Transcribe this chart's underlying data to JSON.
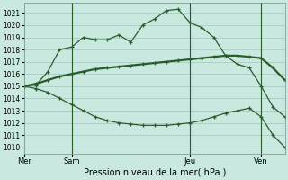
{
  "background_color": "#c8e8e0",
  "grid_color": "#a0c8c0",
  "line_color": "#2a5c2a",
  "xlabel": "Pression niveau de la mer( hPa )",
  "ylim": [
    1009.5,
    1021.8
  ],
  "yticks": [
    1010,
    1011,
    1012,
    1013,
    1014,
    1015,
    1016,
    1017,
    1018,
    1019,
    1020,
    1021
  ],
  "day_labels": [
    "Mer",
    "Sam",
    "Jeu",
    "Ven"
  ],
  "day_positions": [
    0,
    4,
    14,
    20
  ],
  "series1_x": [
    0,
    1,
    2,
    3,
    4,
    5,
    6,
    7,
    8,
    9,
    10,
    11,
    12,
    13,
    14,
    15,
    16,
    17,
    18,
    19,
    20,
    21,
    22
  ],
  "series1_y": [
    1015.0,
    1015.1,
    1016.2,
    1018.0,
    1018.2,
    1019.0,
    1018.8,
    1018.8,
    1019.2,
    1018.6,
    1020.0,
    1020.5,
    1021.2,
    1021.3,
    1020.2,
    1019.8,
    1019.0,
    1017.5,
    1016.8,
    1016.5,
    1015.0,
    1013.3,
    1012.5
  ],
  "series2_x": [
    0,
    1,
    2,
    3,
    4,
    5,
    6,
    7,
    8,
    9,
    10,
    11,
    12,
    13,
    14,
    15,
    16,
    17,
    18,
    19,
    20,
    21,
    22
  ],
  "series2_y": [
    1015.0,
    1015.2,
    1015.5,
    1015.8,
    1016.0,
    1016.2,
    1016.4,
    1016.5,
    1016.6,
    1016.7,
    1016.8,
    1016.9,
    1017.0,
    1017.1,
    1017.2,
    1017.3,
    1017.4,
    1017.5,
    1017.5,
    1017.4,
    1017.3,
    1016.5,
    1015.5
  ],
  "series3_x": [
    0,
    1,
    2,
    3,
    4,
    5,
    6,
    7,
    8,
    9,
    10,
    11,
    12,
    13,
    14,
    15,
    16,
    17,
    18,
    19,
    20,
    21,
    22
  ],
  "series3_y": [
    1015.0,
    1014.8,
    1014.5,
    1014.0,
    1013.5,
    1013.0,
    1012.5,
    1012.2,
    1012.0,
    1011.9,
    1011.8,
    1011.8,
    1011.8,
    1011.9,
    1012.0,
    1012.2,
    1012.5,
    1012.8,
    1013.0,
    1013.2,
    1012.5,
    1011.0,
    1010.0
  ],
  "xlim": [
    0,
    22
  ]
}
